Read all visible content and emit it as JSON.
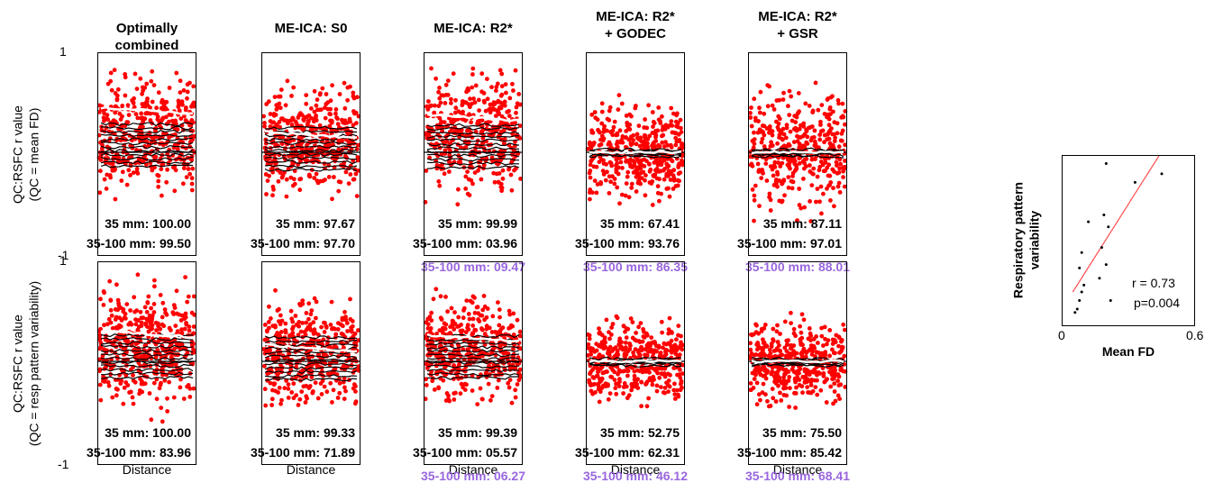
{
  "chart_data": [
    {
      "type": "scatter",
      "rows": [
        {
          "ylabel_line1": "QC:RSFC r value",
          "ylabel_line2": "(QC = mean FD)"
        },
        {
          "ylabel_line1": "QC:RSFC r value",
          "ylabel_line2": "(QC = resp pattern variability)"
        }
      ],
      "ytick_top": "1",
      "ytick_bottom": "-1",
      "ylim": [
        -1,
        1
      ],
      "xlabel": "Distance",
      "columns": [
        {
          "title_lines": [
            "Optimally combined"
          ],
          "top": {
            "stat1": "35 mm: 100.00",
            "stat2": "35-100 mm: 99.50",
            "extra": ""
          },
          "bottom": {
            "stat1": "35 mm: 100.00",
            "stat2": "35-100 mm: 83.96",
            "extra": ""
          }
        },
        {
          "title_lines": [
            "ME-ICA: S0"
          ],
          "top": {
            "stat1": "35 mm: 97.67",
            "stat2": "35-100 mm: 97.70",
            "extra": ""
          },
          "bottom": {
            "stat1": "35 mm: 99.33",
            "stat2": "35-100 mm: 71.89",
            "extra": ""
          }
        },
        {
          "title_lines": [
            "ME-ICA: R2*"
          ],
          "top": {
            "stat1": "35 mm: 99.99",
            "stat2": "35-100 mm: 03.96",
            "extra": "35-100 mm: 09.47"
          },
          "bottom": {
            "stat1": "35 mm: 99.39",
            "stat2": "35-100 mm: 05.57",
            "extra": "35-100 mm: 06.27"
          }
        },
        {
          "title_lines": [
            "ME-ICA: R2*",
            "+ GODEC"
          ],
          "top": {
            "stat1": "35 mm: 67.41",
            "stat2": "35-100 mm: 93.76",
            "extra": "35-100 mm: 86.35"
          },
          "bottom": {
            "stat1": "35 mm: 52.75",
            "stat2": "35-100 mm: 62.31",
            "extra": "35-100 mm: 46.12"
          }
        },
        {
          "title_lines": [
            "ME-ICA: R2*",
            "+ GSR"
          ],
          "top": {
            "stat1": "35 mm: 87.11",
            "stat2": "35-100 mm: 97.01",
            "extra": "35-100 mm: 88.01"
          },
          "bottom": {
            "stat1": "35 mm: 75.50",
            "stat2": "35-100 mm: 85.42",
            "extra": "35-100 mm: 68.41"
          }
        }
      ],
      "colors": {
        "points": "#ff0000",
        "mean_line": "#ffffff",
        "subject_lines": "#000000",
        "extra_text": "#9966dd"
      }
    },
    {
      "type": "scatter",
      "xlabel": "Mean FD",
      "ylabel_line1": "Respiratory pattern",
      "ylabel_line2": "variability",
      "xtick_left": "0",
      "xtick_right": "0.6",
      "xlim": [
        0,
        0.6
      ],
      "ylim": [
        0,
        1
      ],
      "annotation_r": "r = 0.73",
      "annotation_p": "p=0.004",
      "points": [
        {
          "x": 0.06,
          "y": 0.08
        },
        {
          "x": 0.07,
          "y": 0.1
        },
        {
          "x": 0.08,
          "y": 0.15
        },
        {
          "x": 0.09,
          "y": 0.2
        },
        {
          "x": 0.1,
          "y": 0.24
        },
        {
          "x": 0.08,
          "y": 0.34
        },
        {
          "x": 0.09,
          "y": 0.43
        },
        {
          "x": 0.12,
          "y": 0.61
        },
        {
          "x": 0.19,
          "y": 0.65
        },
        {
          "x": 0.21,
          "y": 0.58
        },
        {
          "x": 0.18,
          "y": 0.46
        },
        {
          "x": 0.2,
          "y": 0.36
        },
        {
          "x": 0.17,
          "y": 0.28
        },
        {
          "x": 0.22,
          "y": 0.15
        },
        {
          "x": 0.2,
          "y": 0.95
        },
        {
          "x": 0.33,
          "y": 0.84
        },
        {
          "x": 0.45,
          "y": 0.89
        }
      ],
      "fit": {
        "x": [
          0.05,
          0.44
        ],
        "y": [
          0.2,
          1.0
        ],
        "color": "#ff5050"
      }
    }
  ]
}
